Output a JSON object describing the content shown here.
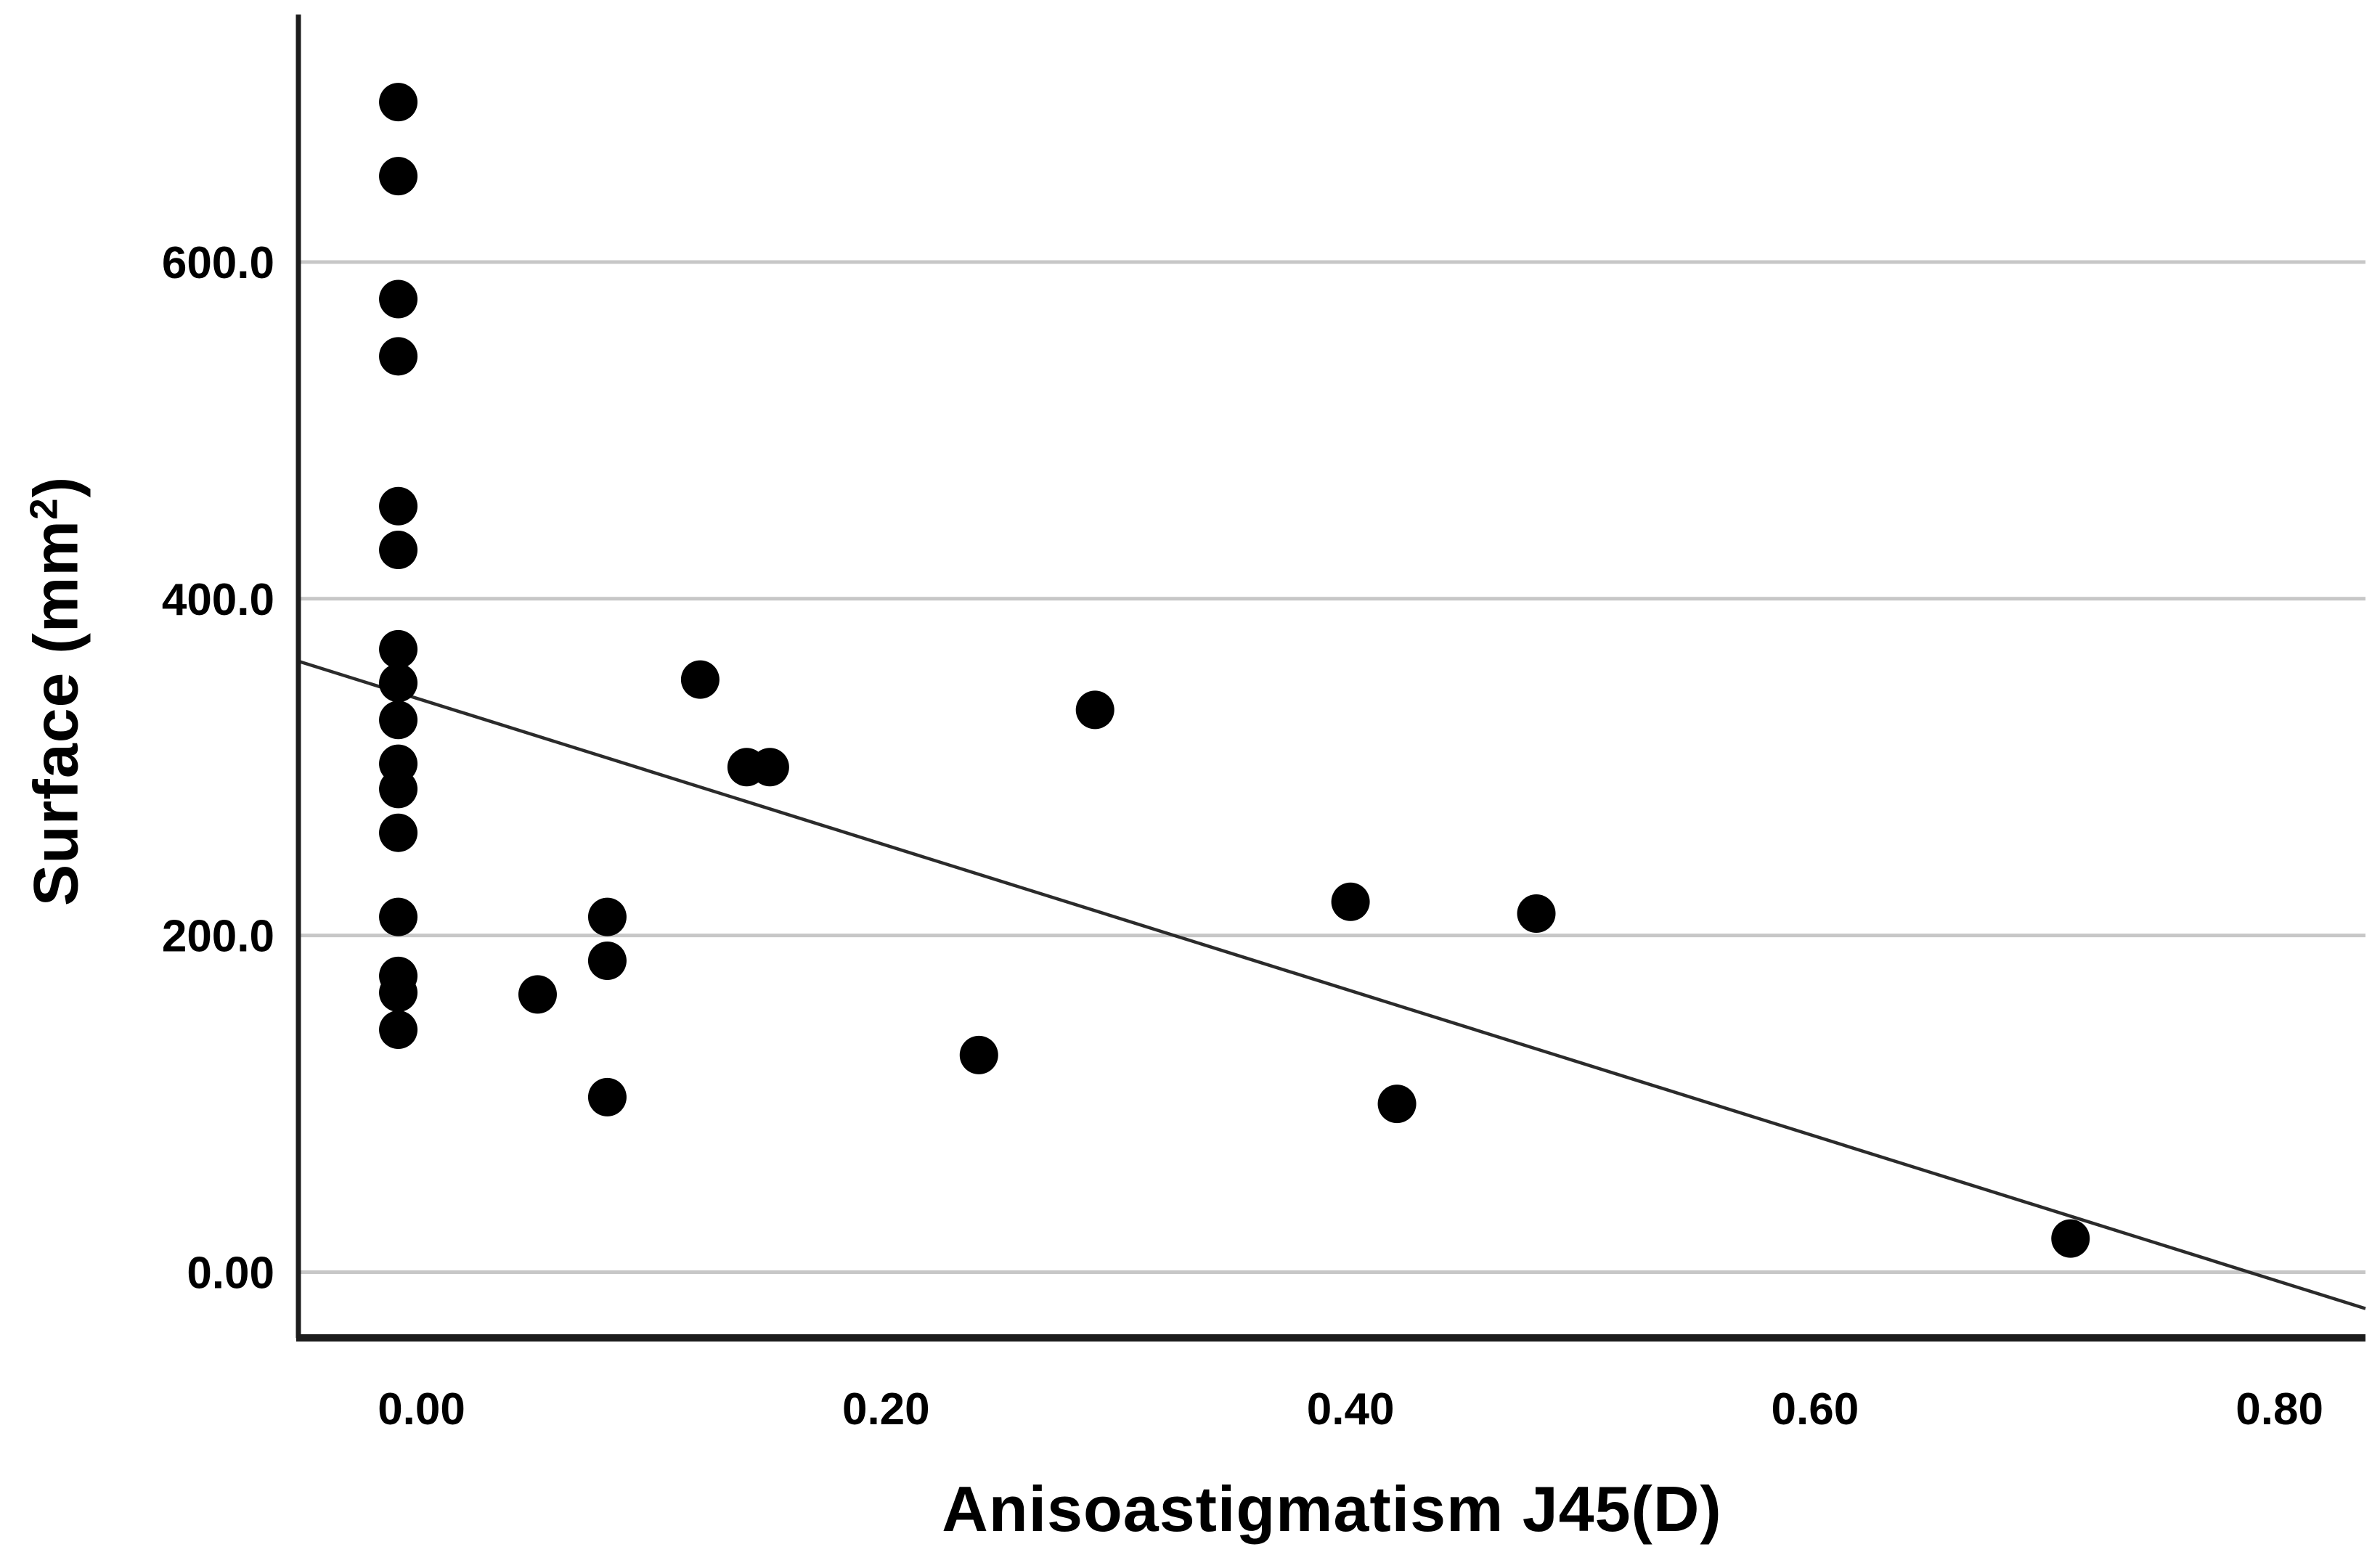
{
  "chart_data": {
    "type": "scatter",
    "title": "",
    "xlabel": "Anisoastigmatism J45(D)",
    "ylabel_base": "Surface (mm",
    "ylabel_sup": "2",
    "ylabel_close": ")",
    "xlim": [
      -0.053,
      0.837
    ],
    "ylim": [
      -39,
      747
    ],
    "grid": "horizontal gridlines at y ticks",
    "legend": "none",
    "x_ticks": [
      {
        "value": 0.0,
        "label": "0.00"
      },
      {
        "value": 0.2,
        "label": "0.20"
      },
      {
        "value": 0.4,
        "label": "0.40"
      },
      {
        "value": 0.6,
        "label": "0.60"
      },
      {
        "value": 0.8,
        "label": "0.80"
      }
    ],
    "y_ticks": [
      {
        "value": 0,
        "label": "0.00"
      },
      {
        "value": 200,
        "label": "200.0"
      },
      {
        "value": 400,
        "label": "400.0"
      },
      {
        "value": 600,
        "label": "600.0"
      }
    ],
    "points": [
      [
        -0.01,
        695
      ],
      [
        -0.01,
        651
      ],
      [
        -0.01,
        578
      ],
      [
        -0.01,
        544
      ],
      [
        -0.01,
        455
      ],
      [
        -0.01,
        429
      ],
      [
        -0.01,
        370
      ],
      [
        -0.01,
        350
      ],
      [
        -0.01,
        328
      ],
      [
        -0.01,
        302
      ],
      [
        -0.01,
        287
      ],
      [
        -0.01,
        261
      ],
      [
        -0.01,
        211
      ],
      [
        -0.01,
        176
      ],
      [
        -0.01,
        166
      ],
      [
        -0.01,
        144
      ],
      [
        0.05,
        165
      ],
      [
        0.08,
        211
      ],
      [
        0.08,
        185
      ],
      [
        0.08,
        104
      ],
      [
        0.12,
        352
      ],
      [
        0.14,
        300
      ],
      [
        0.15,
        300
      ],
      [
        0.24,
        129
      ],
      [
        0.29,
        334
      ],
      [
        0.4,
        220
      ],
      [
        0.42,
        100
      ],
      [
        0.48,
        213
      ],
      [
        0.71,
        20
      ]
    ],
    "fit_line": {
      "intercept": 340,
      "slope": -432,
      "x_start": -0.053,
      "x_end": 0.837
    },
    "colors": {
      "background": "#ffffff",
      "point": "#000000",
      "fit_line": "#2b2b2b",
      "grid": "#c7c7c7",
      "axis": "#1c1c1c",
      "text": "#000000"
    }
  }
}
